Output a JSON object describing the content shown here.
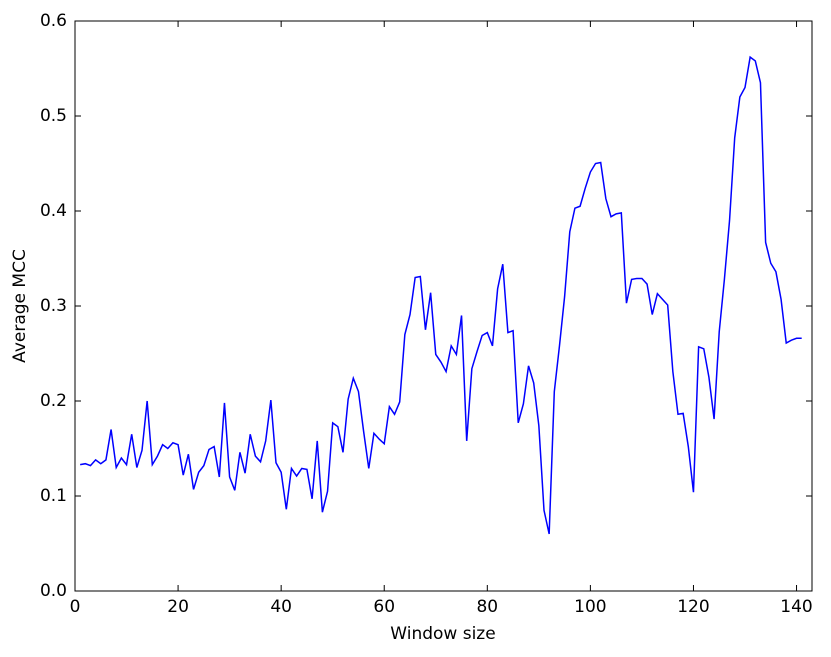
{
  "chart_data": {
    "type": "line",
    "xlabel": "Window size",
    "ylabel": "Average MCC",
    "x": [
      1,
      2,
      3,
      4,
      5,
      6,
      7,
      8,
      9,
      10,
      11,
      12,
      13,
      14,
      15,
      16,
      17,
      18,
      19,
      20,
      21,
      22,
      23,
      24,
      25,
      26,
      27,
      28,
      29,
      30,
      31,
      32,
      33,
      34,
      35,
      36,
      37,
      38,
      39,
      40,
      41,
      42,
      43,
      44,
      45,
      46,
      47,
      48,
      49,
      50,
      51,
      52,
      53,
      54,
      55,
      56,
      57,
      58,
      59,
      60,
      61,
      62,
      63,
      64,
      65,
      66,
      67,
      68,
      69,
      70,
      71,
      72,
      73,
      74,
      75,
      76,
      77,
      78,
      79,
      80,
      81,
      82,
      83,
      84,
      85,
      86,
      87,
      88,
      89,
      90,
      91,
      92,
      93,
      94,
      95,
      96,
      97,
      98,
      99,
      100,
      101,
      102,
      103,
      104,
      105,
      106,
      107,
      108,
      109,
      110,
      111,
      112,
      113,
      114,
      115,
      116,
      117,
      118,
      119,
      120,
      121,
      122,
      123,
      124,
      125,
      126,
      127,
      128,
      129,
      130,
      131,
      132,
      133,
      134,
      135,
      136,
      137,
      138,
      139,
      140,
      141
    ],
    "series": [
      {
        "name": "Average MCC",
        "color": "#0000ff",
        "values": [
          0.133,
          0.134,
          0.132,
          0.138,
          0.134,
          0.138,
          0.17,
          0.13,
          0.14,
          0.133,
          0.165,
          0.13,
          0.148,
          0.2,
          0.133,
          0.142,
          0.154,
          0.15,
          0.156,
          0.154,
          0.122,
          0.144,
          0.107,
          0.125,
          0.132,
          0.149,
          0.152,
          0.12,
          0.198,
          0.12,
          0.106,
          0.146,
          0.124,
          0.165,
          0.142,
          0.136,
          0.158,
          0.201,
          0.135,
          0.125,
          0.086,
          0.129,
          0.121,
          0.129,
          0.128,
          0.097,
          0.158,
          0.083,
          0.105,
          0.177,
          0.173,
          0.146,
          0.202,
          0.224,
          0.21,
          0.168,
          0.129,
          0.166,
          0.16,
          0.155,
          0.194,
          0.186,
          0.199,
          0.27,
          0.291,
          0.33,
          0.331,
          0.275,
          0.314,
          0.249,
          0.241,
          0.231,
          0.258,
          0.249,
          0.29,
          0.158,
          0.234,
          0.252,
          0.269,
          0.272,
          0.258,
          0.318,
          0.344,
          0.272,
          0.274,
          0.177,
          0.197,
          0.237,
          0.219,
          0.174,
          0.085,
          0.06,
          0.21,
          0.258,
          0.31,
          0.378,
          0.403,
          0.405,
          0.424,
          0.441,
          0.45,
          0.451,
          0.413,
          0.394,
          0.397,
          0.398,
          0.303,
          0.328,
          0.329,
          0.329,
          0.323,
          0.291,
          0.313,
          0.307,
          0.301,
          0.231,
          0.186,
          0.187,
          0.152,
          0.104,
          0.257,
          0.255,
          0.225,
          0.181,
          0.273,
          0.328,
          0.39,
          0.477,
          0.52,
          0.53,
          0.562,
          0.558,
          0.535,
          0.367,
          0.345,
          0.336,
          0.307,
          0.261,
          0.264,
          0.266,
          0.266
        ]
      }
    ],
    "xlim": [
      0,
      143
    ],
    "xticks": [
      0,
      20,
      40,
      60,
      80,
      100,
      120,
      140
    ],
    "ylim": [
      0,
      0.6
    ],
    "yticks": [
      {
        "value": 0,
        "label": "0.0"
      },
      0.1,
      0.2,
      0.3,
      0.4,
      0.5,
      0.6
    ],
    "grid": false
  }
}
